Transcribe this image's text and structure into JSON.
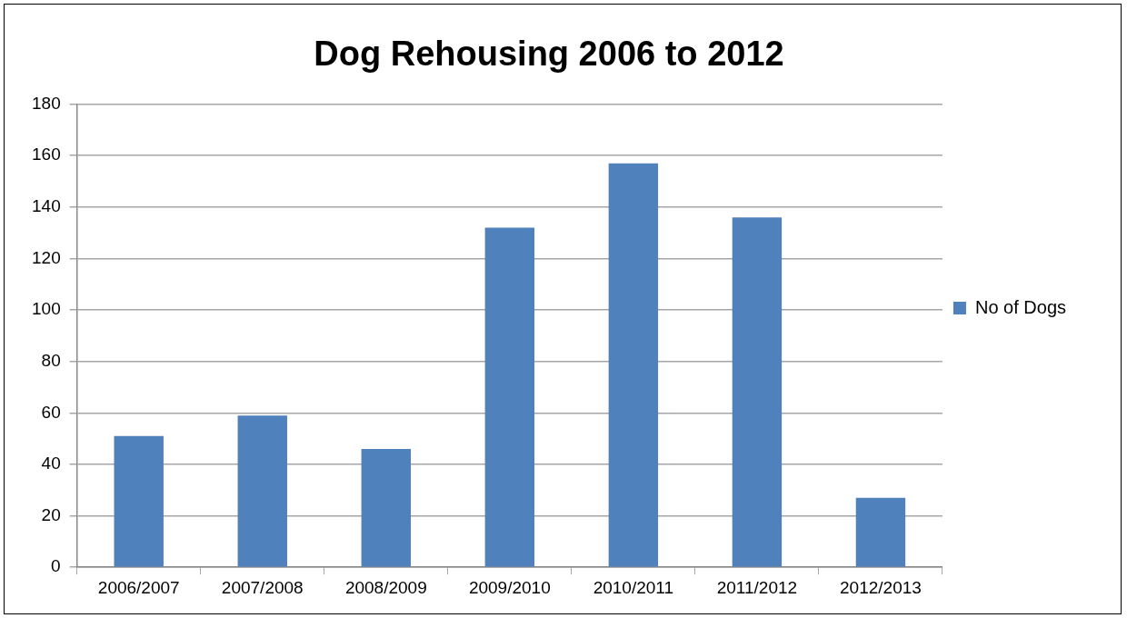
{
  "chart_data": {
    "type": "bar",
    "title": "Dog Rehousing 2006 to 2012",
    "categories": [
      "2006/2007",
      "2007/2008",
      "2008/2009",
      "2009/2010",
      "2010/2011",
      "2011/2012",
      "2012/2013"
    ],
    "series": [
      {
        "name": "No of Dogs",
        "color": "#4f81bd",
        "values": [
          51,
          59,
          46,
          132,
          157,
          136,
          27
        ]
      }
    ],
    "ylim": [
      0,
      180
    ],
    "yticks": [
      0,
      20,
      40,
      60,
      80,
      100,
      120,
      140,
      160,
      180
    ],
    "grid": "y",
    "legend": "right"
  }
}
